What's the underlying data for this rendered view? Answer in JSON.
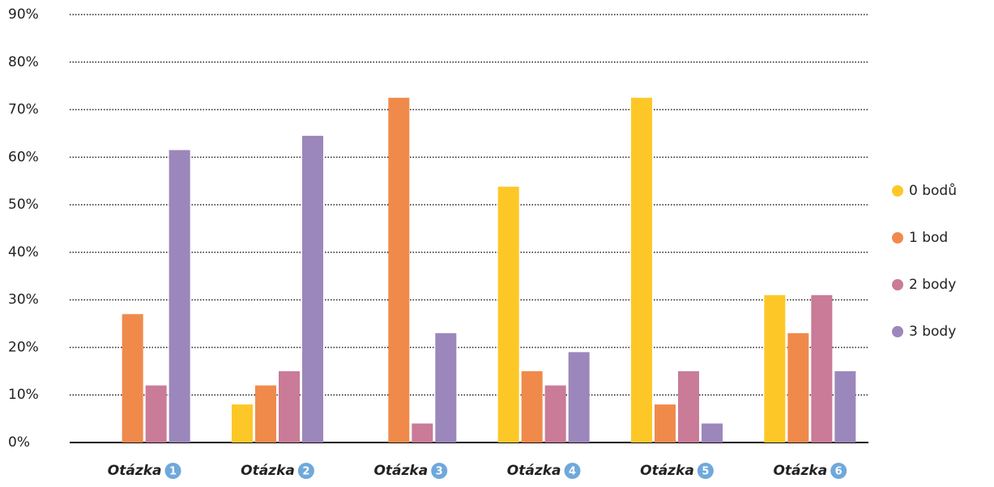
{
  "chart_data": {
    "type": "bar",
    "categories": [
      {
        "text": "Otázka",
        "badge": "1"
      },
      {
        "text": "Otázka",
        "badge": "2"
      },
      {
        "text": "Otázka",
        "badge": "3"
      },
      {
        "text": "Otázka",
        "badge": "4"
      },
      {
        "text": "Otázka",
        "badge": "5"
      },
      {
        "text": "Otázka",
        "badge": "6"
      }
    ],
    "series": [
      {
        "name": "0 bodů",
        "color": "#fdc827",
        "values": [
          0,
          8,
          0,
          53.8,
          72.5,
          31
        ]
      },
      {
        "name": "1 bod",
        "color": "#f08a4b",
        "values": [
          27,
          12,
          72.5,
          15,
          8,
          23
        ]
      },
      {
        "name": "2 body",
        "color": "#c97b97",
        "values": [
          12,
          15,
          4,
          12,
          15,
          31
        ]
      },
      {
        "name": "3 body",
        "color": "#9b87bb",
        "values": [
          61.5,
          64.5,
          23,
          19,
          4,
          15
        ]
      }
    ],
    "ylim": [
      0,
      90
    ],
    "yticks": [
      {
        "value": 0,
        "label": "0%"
      },
      {
        "value": 10,
        "label": "10%"
      },
      {
        "value": 20,
        "label": "20%"
      },
      {
        "value": 30,
        "label": "30%"
      },
      {
        "value": 40,
        "label": "40%"
      },
      {
        "value": 50,
        "label": "50%"
      },
      {
        "value": 60,
        "label": "60%"
      },
      {
        "value": 70,
        "label": "70%"
      },
      {
        "value": 80,
        "label": "80%"
      },
      {
        "value": 90,
        "label": "90%"
      }
    ],
    "grid": true,
    "legend": "right"
  }
}
